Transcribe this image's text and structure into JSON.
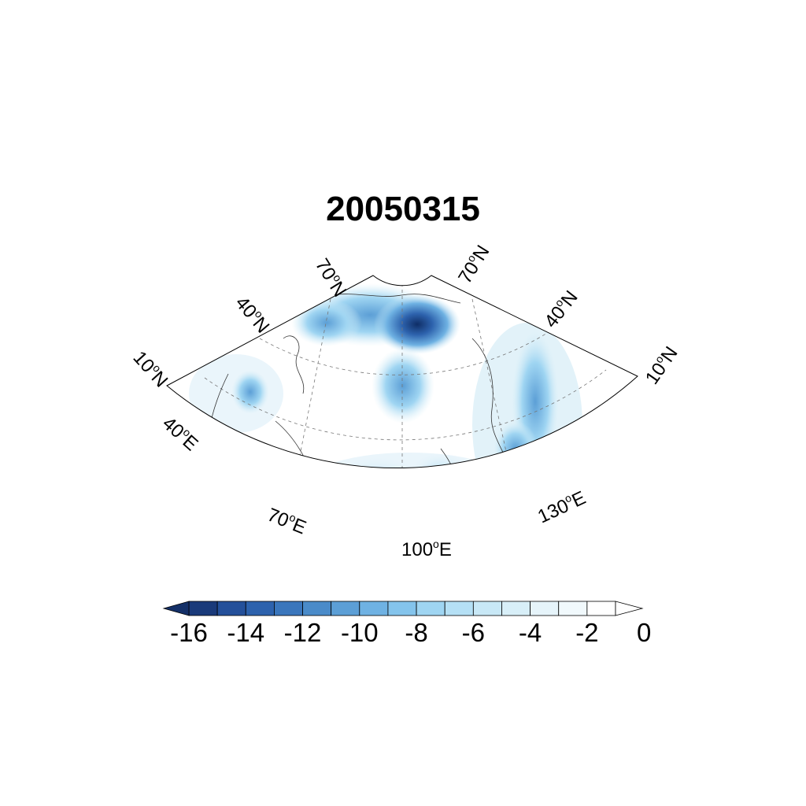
{
  "title": "20050315",
  "lat_labels": {
    "left_inner": "70",
    "left_mid": "40",
    "left_outer": "10",
    "right_inner": "70",
    "right_mid": "40",
    "right_outer": "10",
    "suffix": "N"
  },
  "lon_labels": {
    "l40": "40",
    "l70": "70",
    "l100": "100",
    "l130": "130",
    "suffix": "E"
  },
  "colorbar": {
    "tick_labels": [
      "-16",
      "-14",
      "-12",
      "-10",
      "-8",
      "-6",
      "-4",
      "-2",
      "0"
    ],
    "colors": [
      "#1a3a7a",
      "#24509a",
      "#2d62ad",
      "#3a76bc",
      "#4a8bc9",
      "#5c9fd6",
      "#6fb2e3",
      "#84c4ec",
      "#9fd5f2",
      "#b5e0f5",
      "#c8e8f6",
      "#d8eff8",
      "#e6f4fa",
      "#f1f9fc",
      "#ffffff"
    ],
    "triangle_low_color": "#143068",
    "triangle_high_color": "#ffffff"
  },
  "map": {
    "projection": "lambert-conformal-sector",
    "domain_lon": [
      40,
      130
    ],
    "domain_lat": [
      10,
      70
    ],
    "field_color_low": "#1e4d94"
  }
}
